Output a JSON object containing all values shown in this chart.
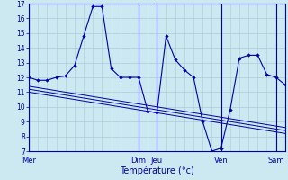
{
  "xlabel": "Température (°c)",
  "background_color": "#cce8f0",
  "grid_color": "#aaccd8",
  "line_color": "#0000aa",
  "ylim": [
    7,
    17
  ],
  "yticks": [
    7,
    8,
    9,
    10,
    11,
    12,
    13,
    14,
    15,
    16,
    17
  ],
  "x_day_labels": [
    "Mer",
    "Dim",
    "Jeu",
    "Ven",
    "Sam"
  ],
  "x_day_positions": [
    0,
    12,
    14,
    21,
    27
  ],
  "num_points": 29,
  "series1_y": [
    12.0,
    11.8,
    11.8,
    12.0,
    12.1,
    12.8,
    14.8,
    16.8,
    16.8,
    12.6,
    12.0,
    12.0,
    12.0,
    9.7,
    9.6,
    14.8,
    13.2,
    12.5,
    12.0,
    9.0,
    7.0,
    7.2,
    9.8,
    13.3,
    13.5,
    13.5,
    12.2,
    12.0,
    11.5
  ],
  "series2_y": [
    11.4,
    11.3,
    11.2,
    11.1,
    11.0,
    10.9,
    10.8,
    10.7,
    10.6,
    10.5,
    10.4,
    10.3,
    10.2,
    10.1,
    10.0,
    9.9,
    9.8,
    9.7,
    9.6,
    9.5,
    9.4,
    9.3,
    9.2,
    9.1,
    9.0,
    8.9,
    8.8,
    8.7,
    8.6
  ],
  "series3_y": [
    11.2,
    11.1,
    11.0,
    10.9,
    10.8,
    10.7,
    10.6,
    10.5,
    10.4,
    10.3,
    10.2,
    10.1,
    10.0,
    9.9,
    9.8,
    9.7,
    9.6,
    9.5,
    9.4,
    9.3,
    9.2,
    9.1,
    9.0,
    8.9,
    8.8,
    8.7,
    8.6,
    8.5,
    8.4
  ],
  "series4_y": [
    11.0,
    10.9,
    10.8,
    10.7,
    10.6,
    10.5,
    10.4,
    10.3,
    10.2,
    10.1,
    10.0,
    9.9,
    9.8,
    9.7,
    9.6,
    9.5,
    9.4,
    9.3,
    9.2,
    9.1,
    9.0,
    8.9,
    8.8,
    8.7,
    8.6,
    8.5,
    8.4,
    8.3,
    8.2
  ]
}
